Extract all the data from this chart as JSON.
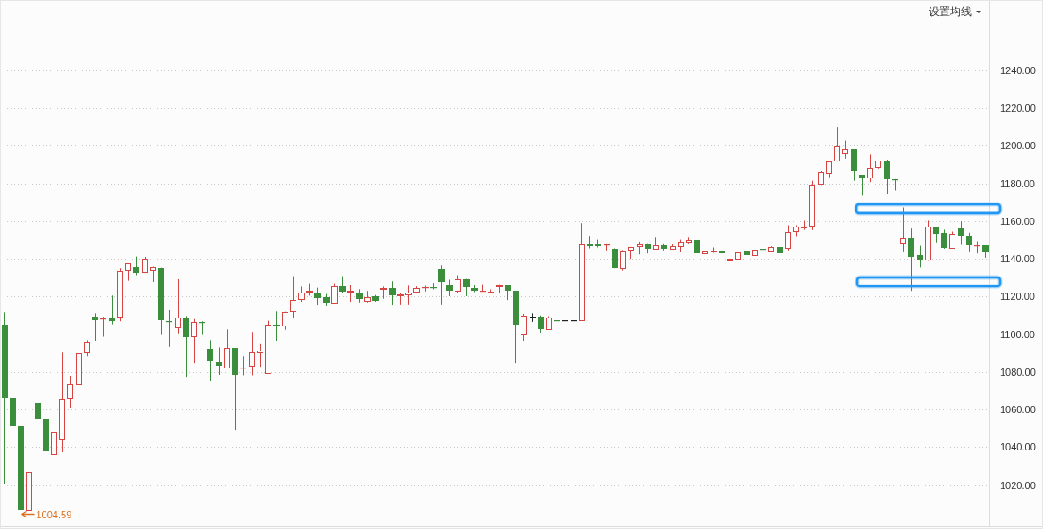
{
  "chart_data": {
    "type": "candlestick",
    "categories": [
      null,
      null,
      null,
      null,
      null,
      null,
      null,
      null,
      null,
      null,
      null,
      null,
      null,
      null,
      null,
      null,
      null,
      null,
      null,
      null,
      null,
      null,
      null,
      null,
      null,
      null,
      null,
      null,
      null,
      null,
      null,
      null,
      null,
      null,
      null,
      null,
      null,
      null,
      null,
      null,
      null,
      null,
      null,
      null,
      null,
      null,
      null,
      null,
      null,
      null,
      null,
      null,
      null,
      null,
      null,
      null,
      null,
      null,
      null,
      null,
      null,
      null,
      null,
      null,
      null,
      null,
      null,
      null,
      null,
      null,
      null,
      null,
      null,
      null,
      null,
      null,
      null,
      null,
      null,
      null,
      null,
      null,
      null,
      null,
      null,
      null,
      null,
      null,
      null,
      null,
      null,
      null,
      null,
      null,
      null,
      null,
      null,
      null,
      null,
      null,
      null,
      null,
      null,
      null,
      null,
      null,
      null,
      null,
      null,
      null,
      null,
      null,
      null,
      null,
      null,
      null,
      null,
      null,
      null,
      null
    ],
    "ohlc": [
      [
        1105.2,
        1111.5,
        1020.4,
        1066.2
      ],
      [
        1066.0,
        1074.1,
        1038.2,
        1051.5
      ],
      [
        1051.3,
        1059.4,
        1004.59,
        1006.5
      ],
      [
        1006.2,
        1028.9,
        1006.2,
        1026.8
      ],
      [
        1063.2,
        1077.9,
        1043.4,
        1054.8
      ],
      [
        1054.6,
        1073.1,
        1037.7,
        1037.7
      ],
      [
        1036.0,
        1056.5,
        1033.0,
        1048.3
      ],
      [
        1044.1,
        1090.2,
        1037.3,
        1065.9
      ],
      [
        1065.9,
        1077.9,
        1061.0,
        1073.1
      ],
      [
        1073.0,
        1091.3,
        1073.0,
        1090.0
      ],
      [
        1090.0,
        1096.8,
        1088.3,
        1096.2
      ],
      [
        1109.2,
        1111.0,
        1096.5,
        1107.4
      ],
      [
        1107.8,
        1109.2,
        1098.6,
        1108.3
      ],
      [
        1108.2,
        1120.5,
        1105.2,
        1106.9
      ],
      [
        1109.0,
        1135.2,
        1106.8,
        1133.3
      ],
      [
        1133.2,
        1137.6,
        1128.4,
        1137.6
      ],
      [
        1135.7,
        1141.2,
        1131.3,
        1132.5
      ],
      [
        1132.4,
        1141.0,
        1132.4,
        1140.2
      ],
      [
        1133.6,
        1136.0,
        1127.8,
        1135.7
      ],
      [
        1135.5,
        1135.5,
        1100.0,
        1107.5
      ],
      [
        1106.8,
        1112.7,
        1093.3,
        1106.4
      ],
      [
        1103.3,
        1129.2,
        1100.4,
        1109.0
      ],
      [
        1108.6,
        1109.6,
        1077.0,
        1098.5
      ],
      [
        1098.5,
        1108.0,
        1084.6,
        1106.3
      ],
      [
        1106.4,
        1106.8,
        1100.0,
        1106.0
      ],
      [
        1092.1,
        1096.8,
        1075.2,
        1085.4
      ],
      [
        1085.0,
        1093.0,
        1078.5,
        1083.4
      ],
      [
        1081.8,
        1102.5,
        1081.8,
        1092.5
      ],
      [
        1092.5,
        1092.5,
        1049.1,
        1078.3
      ],
      [
        1082.0,
        1088.3,
        1078.3,
        1082.4
      ],
      [
        1082.7,
        1101.1,
        1078.3,
        1090.5
      ],
      [
        1090.0,
        1094.7,
        1082.7,
        1091.4
      ],
      [
        1079.1,
        1107.1,
        1079.1,
        1105.2
      ],
      [
        1105.2,
        1112.0,
        1096.5,
        1104.5
      ],
      [
        1104.1,
        1111.8,
        1102.3,
        1111.8
      ],
      [
        1111.8,
        1130.8,
        1108.3,
        1118.4
      ],
      [
        1118.3,
        1125.2,
        1117.0,
        1122.2
      ],
      [
        1122.2,
        1127.0,
        1120.5,
        1122.9
      ],
      [
        1121.8,
        1124.6,
        1115.4,
        1119.4
      ],
      [
        1119.7,
        1121.3,
        1115.0,
        1116.5
      ],
      [
        1116.1,
        1127.0,
        1116.1,
        1125.2
      ],
      [
        1125.2,
        1130.8,
        1121.8,
        1122.5
      ],
      [
        1122.2,
        1126.0,
        1117.0,
        1122.9
      ],
      [
        1122.2,
        1123.8,
        1116.5,
        1118.9
      ],
      [
        1117.5,
        1122.9,
        1116.5,
        1119.9
      ],
      [
        1120.0,
        1120.8,
        1117.3,
        1117.8
      ],
      [
        1123.6,
        1125.2,
        1118.9,
        1124.4
      ],
      [
        1124.3,
        1128.1,
        1115.4,
        1120.7
      ],
      [
        1120.4,
        1121.8,
        1115.5,
        1121.0
      ],
      [
        1120.7,
        1125.7,
        1115.5,
        1122.3
      ],
      [
        1122.3,
        1125.3,
        1122.3,
        1124.2
      ],
      [
        1124.2,
        1125.6,
        1122.6,
        1125.0
      ],
      [
        1124.8,
        1127.2,
        1123.7,
        1124.5
      ],
      [
        1135.0,
        1136.6,
        1115.5,
        1127.6
      ],
      [
        1126.5,
        1128.9,
        1120.2,
        1123.0
      ],
      [
        1122.6,
        1131.3,
        1121.6,
        1129.4
      ],
      [
        1129.4,
        1129.4,
        1120.2,
        1125.1
      ],
      [
        1124.2,
        1126.1,
        1122.3,
        1123.0
      ],
      [
        1122.7,
        1126.5,
        1122.7,
        1123.2
      ],
      [
        1122.3,
        1123.7,
        1121.6,
        1122.7
      ],
      [
        1125.1,
        1126.5,
        1121.6,
        1125.7
      ],
      [
        1125.7,
        1126.2,
        1118.2,
        1123.0
      ],
      [
        1122.9,
        1122.9,
        1084.6,
        1104.9
      ],
      [
        1100.0,
        1110.7,
        1096.5,
        1109.9
      ],
      [
        1109.2,
        1111.0,
        1106.5,
        1109.2
      ],
      [
        1109.2,
        1109.9,
        1100.8,
        1102.7
      ],
      [
        1102.4,
        1109.5,
        1102.4,
        1108.7
      ],
      [
        1107.3,
        1107.3,
        1107.3,
        1107.3
      ],
      [
        1107.3,
        1107.3,
        1107.3,
        1107.3
      ],
      [
        1107.3,
        1107.3,
        1107.3,
        1107.3
      ],
      [
        1107.1,
        1158.9,
        1107.1,
        1147.5
      ],
      [
        1147.7,
        1151.8,
        1145.5,
        1146.9
      ],
      [
        1147.7,
        1150.2,
        1146.0,
        1146.9
      ],
      [
        1147.1,
        1148.2,
        1144.4,
        1147.7
      ],
      [
        1145.5,
        1145.5,
        1135.2,
        1135.2
      ],
      [
        1134.9,
        1144.6,
        1133.6,
        1144.2
      ],
      [
        1144.1,
        1146.3,
        1140.0,
        1146.0
      ],
      [
        1146.3,
        1149.1,
        1142.3,
        1147.5
      ],
      [
        1147.5,
        1148.3,
        1142.8,
        1145.3
      ],
      [
        1145.0,
        1151.3,
        1145.0,
        1147.1
      ],
      [
        1147.2,
        1148.2,
        1144.4,
        1145.3
      ],
      [
        1145.0,
        1147.9,
        1145.0,
        1146.6
      ],
      [
        1146.3,
        1150.2,
        1143.4,
        1149.0
      ],
      [
        1148.7,
        1151.3,
        1148.2,
        1149.9
      ],
      [
        1149.9,
        1149.9,
        1143.0,
        1143.0
      ],
      [
        1142.2,
        1144.4,
        1140.4,
        1144.2
      ],
      [
        1143.8,
        1146.0,
        1143.1,
        1144.2
      ],
      [
        1144.4,
        1144.4,
        1142.3,
        1143.1
      ],
      [
        1138.7,
        1143.6,
        1136.3,
        1140.0
      ],
      [
        1139.7,
        1146.0,
        1134.4,
        1143.6
      ],
      [
        1144.2,
        1145.0,
        1141.9,
        1141.9
      ],
      [
        1141.5,
        1147.5,
        1141.5,
        1145.0
      ],
      [
        1145.2,
        1145.5,
        1143.4,
        1144.7
      ],
      [
        1143.9,
        1146.6,
        1143.4,
        1146.0
      ],
      [
        1146.0,
        1146.0,
        1142.3,
        1143.0
      ],
      [
        1145.2,
        1157.8,
        1144.4,
        1154.5
      ],
      [
        1154.5,
        1157.8,
        1151.7,
        1156.9
      ],
      [
        1156.4,
        1160.2,
        1155.4,
        1157.0
      ],
      [
        1156.9,
        1181.4,
        1155.3,
        1179.2
      ],
      [
        1179.2,
        1186.5,
        1179.2,
        1185.8
      ],
      [
        1185.1,
        1191.8,
        1183.3,
        1191.8
      ],
      [
        1191.6,
        1210.1,
        1191.6,
        1199.5
      ],
      [
        1195.3,
        1202.8,
        1193.2,
        1198.4
      ],
      [
        1198.3,
        1198.3,
        1181.4,
        1186.6
      ],
      [
        1184.5,
        1184.5,
        1173.5,
        1182.9
      ],
      [
        1182.5,
        1195.3,
        1180.7,
        1188.2
      ],
      [
        1188.5,
        1192.0,
        1188.0,
        1192.0
      ],
      [
        1192.1,
        1192.6,
        1174.3,
        1182.3
      ],
      [
        1182.3,
        1182.3,
        1176.3,
        1181.8
      ],
      [
        1148.3,
        1167.3,
        1143.9,
        1150.9
      ],
      [
        1150.9,
        1156.1,
        1122.9,
        1141.2
      ],
      [
        1141.9,
        1146.9,
        1135.6,
        1139.2
      ],
      [
        1138.9,
        1160.2,
        1138.9,
        1156.9
      ],
      [
        1157.0,
        1157.0,
        1148.7,
        1153.1
      ],
      [
        1153.7,
        1155.5,
        1145.3,
        1145.8
      ],
      [
        1145.5,
        1154.5,
        1145.5,
        1153.1
      ],
      [
        1156.1,
        1159.9,
        1147.4,
        1152.1
      ],
      [
        1151.8,
        1153.9,
        1143.9,
        1147.4
      ],
      [
        1146.7,
        1149.3,
        1142.8,
        1147.1
      ],
      [
        1147.1,
        1147.1,
        1140.6,
        1143.9
      ]
    ],
    "colors": [
      "#3b8e3b",
      "#3b8e3b",
      "#3b8e3b",
      "#d64541",
      "#3b8e3b",
      "#3b8e3b",
      "#d64541",
      "#d64541",
      "#d64541",
      "#d64541",
      "#d64541",
      "#3b8e3b",
      "#d64541",
      "#3b8e3b",
      "#d64541",
      "#d64541",
      "#3b8e3b",
      "#d64541",
      "#d64541",
      "#3b8e3b",
      "#3b8e3b",
      "#d64541",
      "#3b8e3b",
      "#d64541",
      "#3b8e3b",
      "#3b8e3b",
      "#3b8e3b",
      "#d64541",
      "#3b8e3b",
      "#d64541",
      "#d64541",
      "#d64541",
      "#d64541",
      "#3b8e3b",
      "#d64541",
      "#d64541",
      "#d64541",
      "#d64541",
      "#3b8e3b",
      "#3b8e3b",
      "#d64541",
      "#3b8e3b",
      "#d64541",
      "#3b8e3b",
      "#d64541",
      "#3b8e3b",
      "#d64541",
      "#3b8e3b",
      "#d64541",
      "#d64541",
      "#d64541",
      "#d64541",
      "#3b8e3b",
      "#3b8e3b",
      "#3b8e3b",
      "#d64541",
      "#3b8e3b",
      "#3b8e3b",
      "#d64541",
      "#d64541",
      "#d64541",
      "#3b8e3b",
      "#3b8e3b",
      "#d64541",
      "#222222",
      "#3b8e3b",
      "#d64541",
      "#3b8e3b",
      "#222222",
      "#222222",
      "#d64541",
      "#3b8e3b",
      "#3b8e3b",
      "#d64541",
      "#3b8e3b",
      "#d64541",
      "#d64541",
      "#d64541",
      "#3b8e3b",
      "#d64541",
      "#3b8e3b",
      "#d64541",
      "#d64541",
      "#d64541",
      "#3b8e3b",
      "#d64541",
      "#d64541",
      "#3b8e3b",
      "#d64541",
      "#d64541",
      "#3b8e3b",
      "#d64541",
      "#3b8e3b",
      "#d64541",
      "#3b8e3b",
      "#d64541",
      "#d64541",
      "#d64541",
      "#d64541",
      "#d64541",
      "#d64541",
      "#d64541",
      "#d64541",
      "#3b8e3b",
      "#3b8e3b",
      "#d64541",
      "#d64541",
      "#3b8e3b",
      "#3b8e3b",
      "#d64541",
      "#3b8e3b",
      "#3b8e3b",
      "#d64541",
      "#3b8e3b",
      "#3b8e3b",
      "#d64541",
      "#3b8e3b",
      "#3b8e3b",
      "#d64541",
      "#3b8e3b"
    ],
    "ylim": [
      998,
      1266.5
    ],
    "yticks": [
      {
        "value": 1020,
        "label": "1020.00"
      },
      {
        "value": 1040,
        "label": "1040.00"
      },
      {
        "value": 1060,
        "label": "1060.00"
      },
      {
        "value": 1080,
        "label": "1080.00"
      },
      {
        "value": 1100,
        "label": "1100.00"
      },
      {
        "value": 1120,
        "label": "1120.00"
      },
      {
        "value": 1140,
        "label": "1140.00"
      },
      {
        "value": 1160,
        "label": "1160.00"
      },
      {
        "value": 1180,
        "label": "1180.00"
      },
      {
        "value": 1200,
        "label": "1200.00"
      },
      {
        "value": 1220,
        "label": "1220.00"
      },
      {
        "value": 1240,
        "label": "1240.00"
      }
    ],
    "grid": "y",
    "tick_labels": "y",
    "annotations": [
      "设置均线",
      "1004.59"
    ]
  }
}
